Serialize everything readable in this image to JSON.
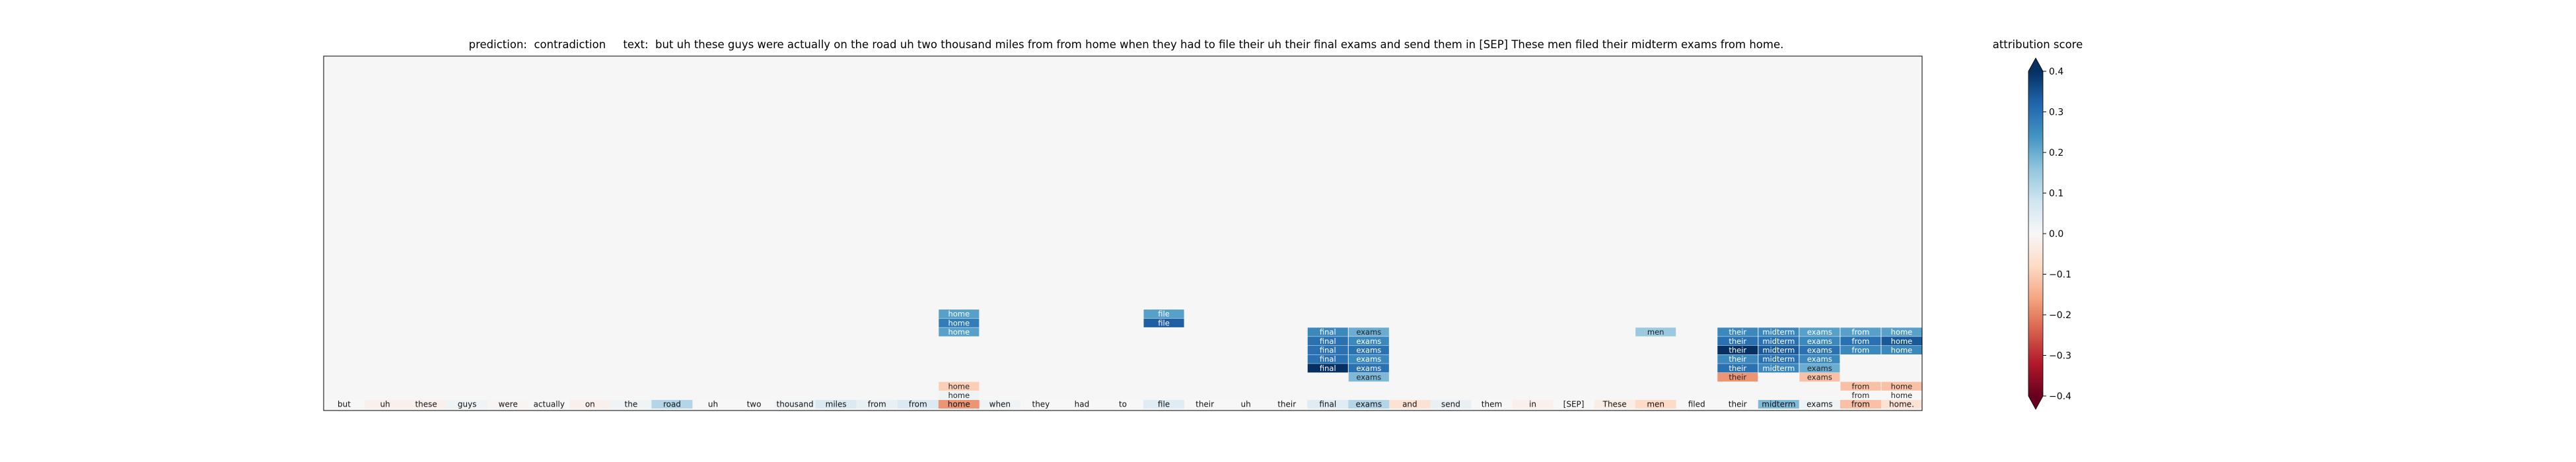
{
  "chart_data": {
    "type": "heatmap",
    "title": "prediction:  contradiction     text:  but uh these guys were actually on the road uh two thousand miles from from home when they had to file their uh their final exams and send them in [SEP] These men filed their midterm exams from home.",
    "tokens": [
      "but",
      "uh",
      "these",
      "guys",
      "were",
      "actually",
      "on",
      "the",
      "road",
      "uh",
      "two",
      "thousand",
      "miles",
      "from",
      "from",
      "home",
      "when",
      "they",
      "had",
      "to",
      "file",
      "their",
      "uh",
      "their",
      "final",
      "exams",
      "and",
      "send",
      "them",
      "in",
      "[SEP]",
      "These",
      "men",
      "filed",
      "their",
      "midterm",
      "exams",
      "from",
      "home."
    ],
    "token_scores": [
      0.0,
      -0.02,
      -0.02,
      0.02,
      -0.01,
      0.0,
      -0.02,
      0.02,
      0.12,
      0.0,
      0.0,
      0.02,
      0.06,
      0.03,
      0.06,
      -0.18,
      0.02,
      0.0,
      0.0,
      0.0,
      0.05,
      0.0,
      0.0,
      0.0,
      0.05,
      0.12,
      -0.06,
      0.03,
      0.0,
      -0.02,
      0.0,
      -0.03,
      -0.08,
      0.0,
      0.0,
      0.18,
      0.02,
      -0.12,
      -0.06
    ],
    "cells": [
      {
        "col": 15,
        "row": 1,
        "text": "home",
        "score": 0.02
      },
      {
        "col": 15,
        "row": 2,
        "text": "home",
        "score": -0.1
      },
      {
        "col": 15,
        "row": 8,
        "text": "home",
        "score": 0.22
      },
      {
        "col": 15,
        "row": 9,
        "text": "home",
        "score": 0.28
      },
      {
        "col": 15,
        "row": 10,
        "text": "home",
        "score": 0.22
      },
      {
        "col": 20,
        "row": 9,
        "text": "file",
        "score": 0.33
      },
      {
        "col": 20,
        "row": 10,
        "text": "file",
        "score": 0.22
      },
      {
        "col": 24,
        "row": 4,
        "text": "final",
        "score": 0.42
      },
      {
        "col": 24,
        "row": 5,
        "text": "final",
        "score": 0.3
      },
      {
        "col": 24,
        "row": 6,
        "text": "final",
        "score": 0.3
      },
      {
        "col": 24,
        "row": 7,
        "text": "final",
        "score": 0.3
      },
      {
        "col": 24,
        "row": 8,
        "text": "final",
        "score": 0.26
      },
      {
        "col": 25,
        "row": 3,
        "text": "exams",
        "score": 0.18
      },
      {
        "col": 25,
        "row": 4,
        "text": "exams",
        "score": 0.3
      },
      {
        "col": 25,
        "row": 5,
        "text": "exams",
        "score": 0.26
      },
      {
        "col": 25,
        "row": 6,
        "text": "exams",
        "score": 0.3
      },
      {
        "col": 25,
        "row": 7,
        "text": "exams",
        "score": 0.26
      },
      {
        "col": 25,
        "row": 8,
        "text": "exams",
        "score": 0.2
      },
      {
        "col": 32,
        "row": 8,
        "text": "men",
        "score": 0.15
      },
      {
        "col": 34,
        "row": 3,
        "text": "their",
        "score": -0.18
      },
      {
        "col": 34,
        "row": 4,
        "text": "their",
        "score": 0.3
      },
      {
        "col": 34,
        "row": 5,
        "text": "their",
        "score": 0.26
      },
      {
        "col": 34,
        "row": 6,
        "text": "their",
        "score": 0.42
      },
      {
        "col": 34,
        "row": 7,
        "text": "their",
        "score": 0.3
      },
      {
        "col": 34,
        "row": 8,
        "text": "their",
        "score": 0.26
      },
      {
        "col": 35,
        "row": 4,
        "text": "midterm",
        "score": 0.26
      },
      {
        "col": 35,
        "row": 5,
        "text": "midterm",
        "score": 0.3
      },
      {
        "col": 35,
        "row": 6,
        "text": "midterm",
        "score": 0.34
      },
      {
        "col": 35,
        "row": 7,
        "text": "midterm",
        "score": 0.3
      },
      {
        "col": 35,
        "row": 8,
        "text": "midterm",
        "score": 0.26
      },
      {
        "col": 36,
        "row": 3,
        "text": "exams",
        "score": -0.12
      },
      {
        "col": 36,
        "row": 4,
        "text": "exams",
        "score": 0.2
      },
      {
        "col": 36,
        "row": 5,
        "text": "exams",
        "score": 0.26
      },
      {
        "col": 36,
        "row": 6,
        "text": "exams",
        "score": 0.3
      },
      {
        "col": 36,
        "row": 7,
        "text": "exams",
        "score": 0.26
      },
      {
        "col": 36,
        "row": 8,
        "text": "exams",
        "score": 0.22
      },
      {
        "col": 37,
        "row": 1,
        "text": "from",
        "score": 0.0
      },
      {
        "col": 37,
        "row": 2,
        "text": "from",
        "score": -0.12
      },
      {
        "col": 37,
        "row": 6,
        "text": "from",
        "score": 0.26
      },
      {
        "col": 37,
        "row": 7,
        "text": "from",
        "score": 0.3
      },
      {
        "col": 37,
        "row": 8,
        "text": "from",
        "score": 0.22
      },
      {
        "col": 38,
        "row": 1,
        "text": "home",
        "score": 0.0
      },
      {
        "col": 38,
        "row": 2,
        "text": "home",
        "score": -0.12
      },
      {
        "col": 38,
        "row": 6,
        "text": "home",
        "score": 0.26
      },
      {
        "col": 38,
        "row": 7,
        "text": "home",
        "score": 0.34
      },
      {
        "col": 38,
        "row": 8,
        "text": "home",
        "score": 0.22
      }
    ],
    "background_score": 0.0,
    "colorbar": {
      "label": "attribution score",
      "range": [
        -0.4,
        0.4
      ],
      "ticks": [
        0.4,
        0.3,
        0.2,
        0.1,
        0.0,
        -0.1,
        -0.2,
        -0.3,
        -0.4
      ],
      "tick_labels": [
        "0.4",
        "0.3",
        "0.2",
        "0.1",
        "0.0",
        "−0.1",
        "−0.2",
        "−0.3",
        "−0.4"
      ],
      "colormap": "RdBu",
      "extend": "both"
    }
  }
}
